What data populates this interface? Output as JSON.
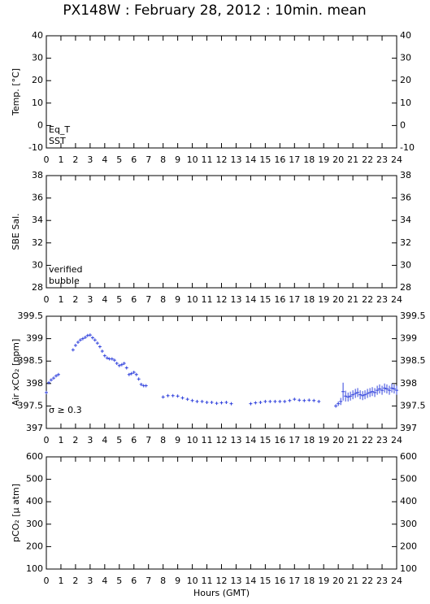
{
  "chart_data": [
    {
      "type": "scatter",
      "title": "PX148W : February 28, 2012 : 10min. mean",
      "ylabel": "Temp. [°C]",
      "xlim": [
        0,
        24
      ],
      "xticks": [
        0,
        1,
        2,
        3,
        4,
        5,
        6,
        7,
        8,
        9,
        10,
        11,
        12,
        13,
        14,
        15,
        16,
        17,
        18,
        19,
        20,
        21,
        22,
        23,
        24
      ],
      "ylim": [
        -10,
        40
      ],
      "yticks": [
        -10,
        0,
        10,
        20,
        30,
        40
      ],
      "series": [
        {
          "name": "Eq_T",
          "color": "#cc0000",
          "values": []
        },
        {
          "name": "SST",
          "color": "#0000cc",
          "values": []
        }
      ]
    },
    {
      "type": "scatter",
      "ylabel": "SBE Sal.",
      "xlim": [
        0,
        24
      ],
      "xticks": [
        0,
        1,
        2,
        3,
        4,
        5,
        6,
        7,
        8,
        9,
        10,
        11,
        12,
        13,
        14,
        15,
        16,
        17,
        18,
        19,
        20,
        21,
        22,
        23,
        24
      ],
      "ylim": [
        28,
        38
      ],
      "yticks": [
        28,
        30,
        32,
        34,
        36,
        38
      ],
      "series": [
        {
          "name": "verified",
          "color": "#0000cc",
          "values": []
        },
        {
          "name": "bubble",
          "color": "#cc00cc",
          "values": []
        }
      ]
    },
    {
      "type": "scatter",
      "ylabel": "Air xCO₂ [ppm]",
      "xlim": [
        0,
        24
      ],
      "xticks": [
        0,
        1,
        2,
        3,
        4,
        5,
        6,
        7,
        8,
        9,
        10,
        11,
        12,
        13,
        14,
        15,
        16,
        17,
        18,
        19,
        20,
        21,
        22,
        23,
        24
      ],
      "ylim": [
        397,
        399.5
      ],
      "yticks": [
        397,
        397.5,
        398,
        398.5,
        399,
        399.5
      ],
      "color": "#3344dd",
      "x": [
        0,
        0.17,
        0.33,
        0.5,
        0.67,
        0.83,
        1.83,
        2,
        2.17,
        2.33,
        2.5,
        2.67,
        2.83,
        3,
        3.17,
        3.33,
        3.5,
        3.67,
        3.83,
        4,
        4.17,
        4.33,
        4.5,
        4.67,
        4.83,
        5,
        5.17,
        5.33,
        5.5,
        5.67,
        5.83,
        6,
        6.17,
        6.33,
        6.5,
        6.67,
        6.83,
        8,
        8.33,
        8.67,
        9,
        9.33,
        9.67,
        10,
        10.33,
        10.67,
        11,
        11.33,
        11.67,
        12,
        12.33,
        12.67,
        14,
        14.33,
        14.67,
        15,
        15.33,
        15.67,
        16,
        16.33,
        16.67,
        17,
        17.33,
        17.67,
        18,
        18.33,
        18.67,
        19.83,
        20,
        20.17,
        20.33,
        20.5,
        20.67,
        20.83,
        21,
        21.17,
        21.33,
        21.5,
        21.67,
        21.83,
        22,
        22.17,
        22.33,
        22.5,
        22.67,
        22.83,
        23,
        23.17,
        23.33,
        23.5,
        23.67,
        23.83,
        24
      ],
      "values": [
        397.8,
        398.02,
        398.08,
        398.12,
        398.17,
        398.2,
        398.75,
        398.85,
        398.92,
        398.97,
        399,
        399.03,
        399.07,
        399.08,
        399.02,
        398.97,
        398.9,
        398.82,
        398.72,
        398.62,
        398.57,
        398.55,
        398.55,
        398.52,
        398.45,
        398.4,
        398.42,
        398.45,
        398.35,
        398.2,
        398.22,
        398.25,
        398.2,
        398.1,
        397.98,
        397.95,
        397.95,
        397.7,
        397.73,
        397.73,
        397.72,
        397.68,
        397.65,
        397.62,
        397.6,
        397.6,
        397.58,
        397.58,
        397.56,
        397.57,
        397.58,
        397.55,
        397.55,
        397.57,
        397.58,
        397.6,
        397.6,
        397.6,
        397.6,
        397.6,
        397.62,
        397.65,
        397.63,
        397.62,
        397.63,
        397.62,
        397.6,
        397.5,
        397.55,
        397.6,
        397.82,
        397.72,
        397.7,
        397.72,
        397.75,
        397.78,
        397.8,
        397.75,
        397.73,
        397.75,
        397.78,
        397.8,
        397.82,
        397.8,
        397.85,
        397.88,
        397.85,
        397.9,
        397.88,
        397.85,
        397.9,
        397.88,
        397.85
      ],
      "errors": [
        0.03,
        0.03,
        0.03,
        0.03,
        0.03,
        0.03,
        0.03,
        0.03,
        0.03,
        0.03,
        0.03,
        0.03,
        0.03,
        0.03,
        0.03,
        0.03,
        0.03,
        0.03,
        0.03,
        0.03,
        0.03,
        0.03,
        0.03,
        0.03,
        0.03,
        0.03,
        0.03,
        0.03,
        0.03,
        0.03,
        0.03,
        0.03,
        0.03,
        0.03,
        0.03,
        0.03,
        0.03,
        0.02,
        0.02,
        0.02,
        0.02,
        0.02,
        0.02,
        0.02,
        0.02,
        0.02,
        0.02,
        0.02,
        0.02,
        0.02,
        0.02,
        0.02,
        0.02,
        0.02,
        0.02,
        0.02,
        0.02,
        0.02,
        0.02,
        0.02,
        0.02,
        0.02,
        0.02,
        0.02,
        0.02,
        0.02,
        0.02,
        0.04,
        0.05,
        0.08,
        0.2,
        0.12,
        0.1,
        0.1,
        0.1,
        0.1,
        0.1,
        0.1,
        0.1,
        0.1,
        0.1,
        0.1,
        0.1,
        0.1,
        0.1,
        0.1,
        0.1,
        0.1,
        0.1,
        0.1,
        0.1,
        0.1,
        0.1
      ],
      "series": [
        {
          "name": "σ ≥ 0.3",
          "color": "#cc00cc",
          "values": []
        }
      ]
    },
    {
      "type": "scatter",
      "ylabel": "pCO₂ [μ atm]",
      "xlabel": "Hours (GMT)",
      "xlim": [
        0,
        24
      ],
      "xticks": [
        0,
        1,
        2,
        3,
        4,
        5,
        6,
        7,
        8,
        9,
        10,
        11,
        12,
        13,
        14,
        15,
        16,
        17,
        18,
        19,
        20,
        21,
        22,
        23,
        24
      ],
      "ylim": [
        100,
        600
      ],
      "yticks": [
        100,
        200,
        300,
        400,
        500,
        600
      ],
      "series": []
    }
  ]
}
